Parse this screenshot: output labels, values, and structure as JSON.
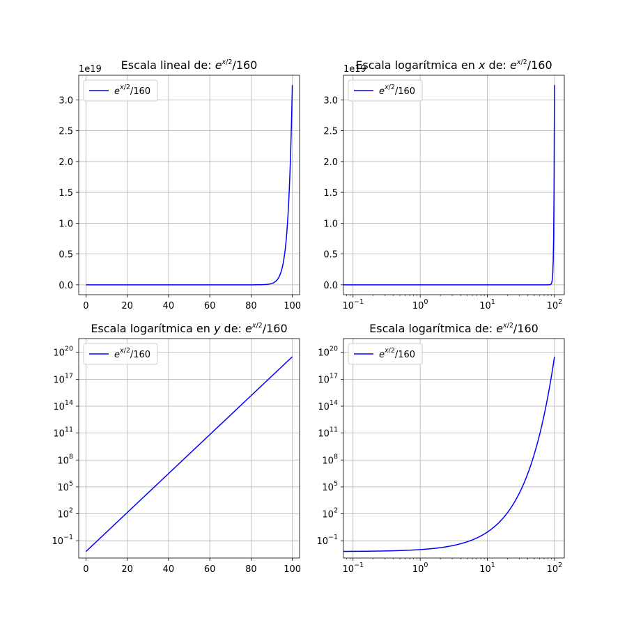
{
  "figure": {
    "background": "#ffffff",
    "grid_color": "#b0b0b0",
    "line_color": "#0000ff"
  },
  "chart_data": [
    {
      "type": "line",
      "title": "Escala lineal de: $e^{x/2}/160$",
      "xscale": "linear",
      "yscale": "linear",
      "xlim": [
        -3.5,
        103.5
      ],
      "ylim": [
        -1.6e+18,
        3.4e+19
      ],
      "xticks": [
        0,
        20,
        40,
        60,
        80,
        100
      ],
      "xtick_labels": [
        "0",
        "20",
        "40",
        "60",
        "80",
        "100"
      ],
      "yticks": [
        0,
        5e+18,
        1e+19,
        1.5e+19,
        2e+19,
        2.5e+19,
        3e+19
      ],
      "ytick_labels": [
        "0.0",
        "0.5",
        "1.0",
        "1.5",
        "2.0",
        "2.5",
        "3.0"
      ],
      "offset_text": "1e19",
      "grid": true,
      "legend": "upper left",
      "series": [
        {
          "name": "$e^{x/2}/160$",
          "function": "exp(x/2)/160",
          "x_range": [
            0,
            100
          ],
          "color": "#0000ff"
        }
      ]
    },
    {
      "type": "line",
      "title": "Escala logarítmica en $x$ de: $e^{x/2}/160$",
      "xscale": "log",
      "yscale": "linear",
      "xlim": [
        0.072,
        140
      ],
      "ylim": [
        -1.6e+18,
        3.4e+19
      ],
      "xticks": [
        0.1,
        1,
        10,
        100
      ],
      "xtick_labels": [
        "10^-1",
        "10^0",
        "10^1",
        "10^2"
      ],
      "yticks": [
        0,
        5e+18,
        1e+19,
        1.5e+19,
        2e+19,
        2.5e+19,
        3e+19
      ],
      "ytick_labels": [
        "0.0",
        "0.5",
        "1.0",
        "1.5",
        "2.0",
        "2.5",
        "3.0"
      ],
      "offset_text": "1e19",
      "grid": true,
      "legend": "upper left",
      "series": [
        {
          "name": "$e^{x/2}/160$",
          "function": "exp(x/2)/160",
          "x_range": [
            0.072,
            100
          ],
          "color": "#0000ff"
        }
      ]
    },
    {
      "type": "line",
      "title": "Escala logarítmica en $y$ de: $e^{x/2}/160$",
      "xscale": "linear",
      "yscale": "log",
      "xlim": [
        -3.5,
        103.5
      ],
      "ylim": [
        0.00118,
        3.4e+21
      ],
      "xticks": [
        0,
        20,
        40,
        60,
        80,
        100
      ],
      "xtick_labels": [
        "0",
        "20",
        "40",
        "60",
        "80",
        "100"
      ],
      "yticks": [
        0.1,
        100,
        100000.0,
        100000000.0,
        100000000000.0,
        100000000000000.0,
        1e+17,
        1e+20
      ],
      "ytick_labels": [
        "10^-1",
        "10^2",
        "10^5",
        "10^8",
        "10^11",
        "10^14",
        "10^17",
        "10^20"
      ],
      "grid": true,
      "legend": "upper left",
      "series": [
        {
          "name": "$e^{x/2}/160$",
          "function": "exp(x/2)/160",
          "x_range": [
            0,
            100
          ],
          "color": "#0000ff"
        }
      ]
    },
    {
      "type": "line",
      "title": "Escala logarítmica de: $e^{x/2}/160$",
      "xscale": "log",
      "yscale": "log",
      "xlim": [
        0.072,
        140
      ],
      "ylim": [
        0.00118,
        3.4e+21
      ],
      "xticks": [
        0.1,
        1,
        10,
        100
      ],
      "xtick_labels": [
        "10^-1",
        "10^0",
        "10^1",
        "10^2"
      ],
      "yticks": [
        0.1,
        100,
        100000.0,
        100000000.0,
        100000000000.0,
        100000000000000.0,
        1e+17,
        1e+20
      ],
      "ytick_labels": [
        "10^-1",
        "10^2",
        "10^5",
        "10^8",
        "10^11",
        "10^14",
        "10^17",
        "10^20"
      ],
      "grid": true,
      "legend": "upper left",
      "series": [
        {
          "name": "$e^{x/2}/160$",
          "function": "exp(x/2)/160",
          "x_range": [
            0.072,
            100
          ],
          "color": "#0000ff"
        }
      ]
    }
  ]
}
